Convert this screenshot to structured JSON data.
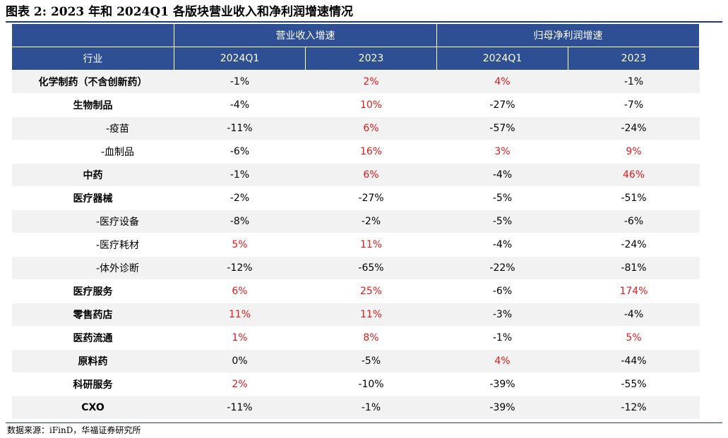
{
  "title": "图表 2:  2023 年和 2024Q1 各版块营业收入和净利润增速情况",
  "source": "数据来源：iFinD，华福证券研究所",
  "colors": {
    "header_bg": "#2e4f94",
    "stripe": "#f2f2f2",
    "highlight": "#e41a1c"
  },
  "table": {
    "group_headers": [
      "营业收入增速",
      "归母净利润增速"
    ],
    "columns": [
      "行业",
      "2024Q1",
      "2023",
      "2024Q1",
      "2023"
    ],
    "rows": [
      {
        "industry": "化学制药（不含创新药）",
        "level": "main",
        "values": [
          "-1%",
          "2%",
          "4%",
          "-1%"
        ],
        "highlight": [
          false,
          true,
          true,
          false
        ]
      },
      {
        "industry": "生物制品",
        "level": "main",
        "values": [
          "-4%",
          "10%",
          "-27%",
          "-7%"
        ],
        "highlight": [
          false,
          true,
          false,
          false
        ]
      },
      {
        "industry": "-疫苗",
        "level": "sub",
        "values": [
          "-11%",
          "6%",
          "-57%",
          "-24%"
        ],
        "highlight": [
          false,
          true,
          false,
          false
        ]
      },
      {
        "industry": "-血制品",
        "level": "sub",
        "values": [
          "-6%",
          "16%",
          "3%",
          "9%"
        ],
        "highlight": [
          false,
          true,
          true,
          true
        ]
      },
      {
        "industry": "中药",
        "level": "main",
        "values": [
          "-1%",
          "6%",
          "-4%",
          "46%"
        ],
        "highlight": [
          false,
          true,
          false,
          true
        ]
      },
      {
        "industry": "医疗器械",
        "level": "main",
        "values": [
          "-2%",
          "-27%",
          "-5%",
          "-51%"
        ],
        "highlight": [
          false,
          false,
          false,
          false
        ]
      },
      {
        "industry": "-医疗设备",
        "level": "sub",
        "values": [
          "-8%",
          "-2%",
          "-5%",
          "-6%"
        ],
        "highlight": [
          false,
          false,
          false,
          false
        ]
      },
      {
        "industry": "-医疗耗材",
        "level": "sub",
        "values": [
          "5%",
          "11%",
          "-4%",
          "-24%"
        ],
        "highlight": [
          true,
          true,
          false,
          false
        ]
      },
      {
        "industry": "-体外诊断",
        "level": "sub",
        "values": [
          "-12%",
          "-65%",
          "-22%",
          "-81%"
        ],
        "highlight": [
          false,
          false,
          false,
          false
        ]
      },
      {
        "industry": "医疗服务",
        "level": "main",
        "values": [
          "6%",
          "25%",
          "-6%",
          "174%"
        ],
        "highlight": [
          true,
          true,
          false,
          true
        ]
      },
      {
        "industry": "零售药店",
        "level": "main",
        "values": [
          "11%",
          "11%",
          "-3%",
          "-4%"
        ],
        "highlight": [
          true,
          true,
          false,
          false
        ]
      },
      {
        "industry": "医药流通",
        "level": "main",
        "values": [
          "1%",
          "8%",
          "-1%",
          "5%"
        ],
        "highlight": [
          true,
          true,
          false,
          true
        ]
      },
      {
        "industry": "原料药",
        "level": "main",
        "values": [
          "0%",
          "-5%",
          "4%",
          "-44%"
        ],
        "highlight": [
          false,
          false,
          true,
          false
        ]
      },
      {
        "industry": "科研服务",
        "level": "main",
        "values": [
          "2%",
          "-10%",
          "-39%",
          "-55%"
        ],
        "highlight": [
          true,
          false,
          false,
          false
        ]
      },
      {
        "industry": "CXO",
        "level": "main",
        "values": [
          "-11%",
          "-1%",
          "-39%",
          "-12%"
        ],
        "highlight": [
          false,
          false,
          false,
          false
        ]
      }
    ]
  }
}
